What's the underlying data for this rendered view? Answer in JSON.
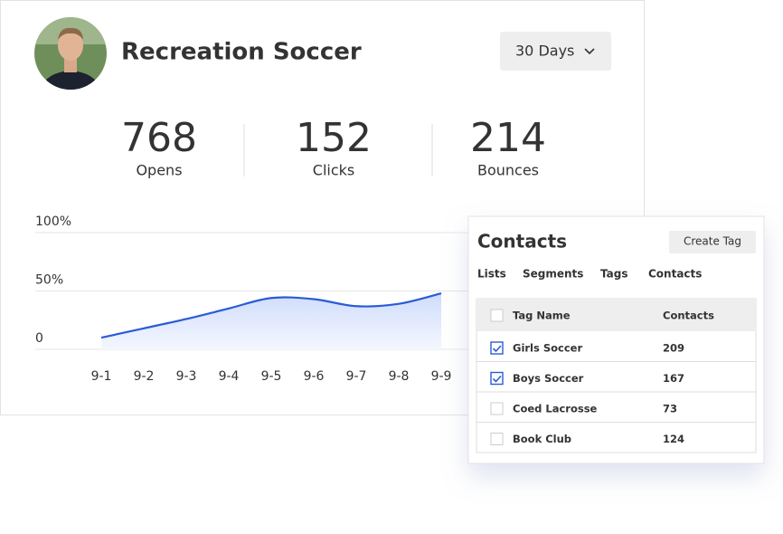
{
  "header": {
    "title": "Recreation Soccer",
    "range": "30 Days"
  },
  "stats": [
    {
      "value": 768,
      "label": "Opens"
    },
    {
      "value": 152,
      "label": "Clicks"
    },
    {
      "value": 214,
      "label": "Bounces"
    }
  ],
  "chart_data": {
    "type": "line",
    "categories": [
      "9-1",
      "9-2",
      "9-3",
      "9-4",
      "9-5",
      "9-6",
      "9-7",
      "9-8",
      "9-9"
    ],
    "values": [
      10,
      18,
      26,
      35,
      44,
      43,
      37,
      39,
      48
    ],
    "color": "#2a5bd7",
    "ylim": [
      0,
      100
    ],
    "yticks": [
      0,
      {
        "value": 50,
        "label": "50%"
      },
      {
        "value": 100,
        "label": "100%"
      }
    ],
    "grid": true
  },
  "contacts": {
    "title": "Contacts",
    "button": "Create Tag",
    "tabs": [
      "Lists",
      "Segments",
      "Tags",
      "Contacts"
    ],
    "table": {
      "columns": [
        "Tag Name",
        "Contacts"
      ],
      "rows": [
        {
          "name": "Girls Soccer",
          "count": 209,
          "checked": true
        },
        {
          "name": "Boys Soccer",
          "count": 167,
          "checked": true
        },
        {
          "name": "Coed Lacrosse",
          "count": 73,
          "checked": false
        },
        {
          "name": "Book Club",
          "count": 124,
          "checked": false
        }
      ]
    }
  }
}
